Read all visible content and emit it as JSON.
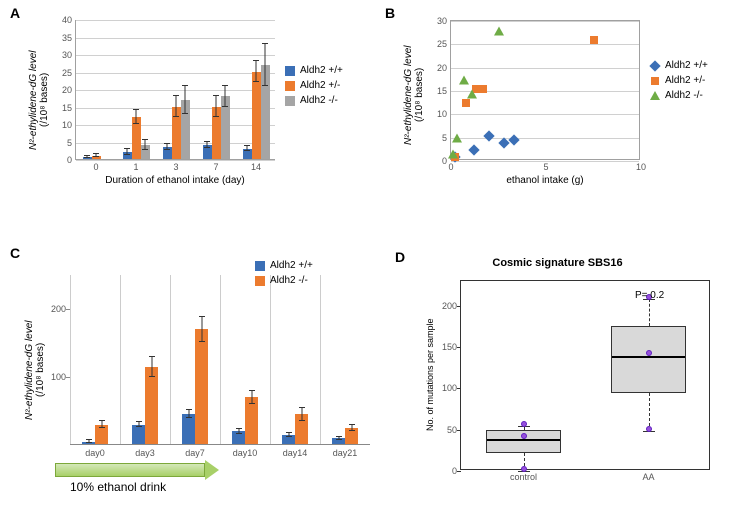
{
  "panels": {
    "A": "A",
    "B": "B",
    "C": "C",
    "D": "D"
  },
  "colors": {
    "blue": "#3b6fb6",
    "orange": "#ec7b2e",
    "gray": "#a5a5a5",
    "green": "#6fac46",
    "grid": "#d0d0d0",
    "boxfill": "#d9d9d9",
    "dot": "#9650dc",
    "dotborder": "#6020c0"
  },
  "legend_genotypes": {
    "pp": "Aldh2 +/+",
    "pm": "Aldh2 +/-",
    "mm": "Aldh2 -/-"
  },
  "panelA": {
    "ylabel_line1": "N²-ethylidene-dG level",
    "ylabel_line2": "(/10⁸ bases)",
    "xlabel": "Duration of ethanol intake  (day)",
    "ymax": 40,
    "ystep": 5,
    "categories": [
      "0",
      "1",
      "3",
      "7",
      "14"
    ],
    "series": [
      {
        "key": "pp",
        "color": "blue",
        "values": [
          0.5,
          2,
          3.5,
          4,
          3
        ],
        "err": [
          0.3,
          0.8,
          0.8,
          0.8,
          0.8
        ]
      },
      {
        "key": "pm",
        "color": "orange",
        "values": [
          1,
          12,
          15,
          15,
          25
        ],
        "err": [
          0.5,
          2,
          3,
          3,
          3
        ]
      },
      {
        "key": "mm",
        "color": "gray",
        "values": [
          0,
          4,
          17,
          18,
          27
        ],
        "err": [
          0,
          1.5,
          4,
          3,
          6
        ]
      }
    ]
  },
  "panelB": {
    "ylabel_line1": "N²-ethylidene-dG level",
    "ylabel_line2": "(/10⁸ bases)",
    "xlabel": "ethanol intake (g)",
    "ymax": 30,
    "ystep": 5,
    "xmax": 10,
    "xstep": 5,
    "points": [
      {
        "g": "pp",
        "x": 0.2,
        "y": 0.5
      },
      {
        "g": "pp",
        "x": 1.2,
        "y": 2
      },
      {
        "g": "pp",
        "x": 2.0,
        "y": 5
      },
      {
        "g": "pp",
        "x": 2.8,
        "y": 3.5
      },
      {
        "g": "pp",
        "x": 3.3,
        "y": 4
      },
      {
        "g": "pm",
        "x": 0.2,
        "y": 0.5
      },
      {
        "g": "pm",
        "x": 0.8,
        "y": 12
      },
      {
        "g": "pm",
        "x": 1.3,
        "y": 15
      },
      {
        "g": "pm",
        "x": 1.7,
        "y": 15
      },
      {
        "g": "pm",
        "x": 7.5,
        "y": 25.5
      },
      {
        "g": "mm",
        "x": 0.1,
        "y": 1
      },
      {
        "g": "mm",
        "x": 0.3,
        "y": 4.5
      },
      {
        "g": "mm",
        "x": 0.7,
        "y": 17
      },
      {
        "g": "mm",
        "x": 1.1,
        "y": 14
      },
      {
        "g": "mm",
        "x": 2.5,
        "y": 27.5
      }
    ]
  },
  "panelC": {
    "ylabel_line1": "N²-ethylidene-dG level",
    "ylabel_line2": "(/10⁸ bases)",
    "ymax": 250,
    "yticks": [
      100,
      200
    ],
    "categories": [
      "day0",
      "day3",
      "day7",
      "day10",
      "day14",
      "day21"
    ],
    "series": [
      {
        "key": "pp",
        "color": "blue",
        "values": [
          5,
          30,
          45,
          20,
          15,
          10
        ],
        "err": [
          2,
          4,
          6,
          4,
          3,
          2
        ]
      },
      {
        "key": "mm",
        "color": "orange",
        "values": [
          30,
          115,
          170,
          70,
          45,
          25
        ],
        "err": [
          5,
          15,
          18,
          10,
          10,
          4
        ]
      }
    ],
    "arrow_label": "10% ethanol drink"
  },
  "panelD": {
    "title": "Cosmic signature SBS16",
    "pval": "P= 0.2",
    "ylabel": "No. of mutations per sample",
    "ymax": 230,
    "yticks": [
      0,
      50,
      100,
      150,
      200
    ],
    "groups": [
      {
        "label": "control",
        "q1": 22,
        "med": 40,
        "q3": 50,
        "wlo": 0,
        "whi": 55,
        "pts": [
          0,
          40,
          55
        ]
      },
      {
        "label": "AA",
        "q1": 95,
        "med": 140,
        "q3": 175,
        "wlo": 48,
        "whi": 208,
        "pts": [
          48,
          140,
          208
        ]
      }
    ]
  }
}
